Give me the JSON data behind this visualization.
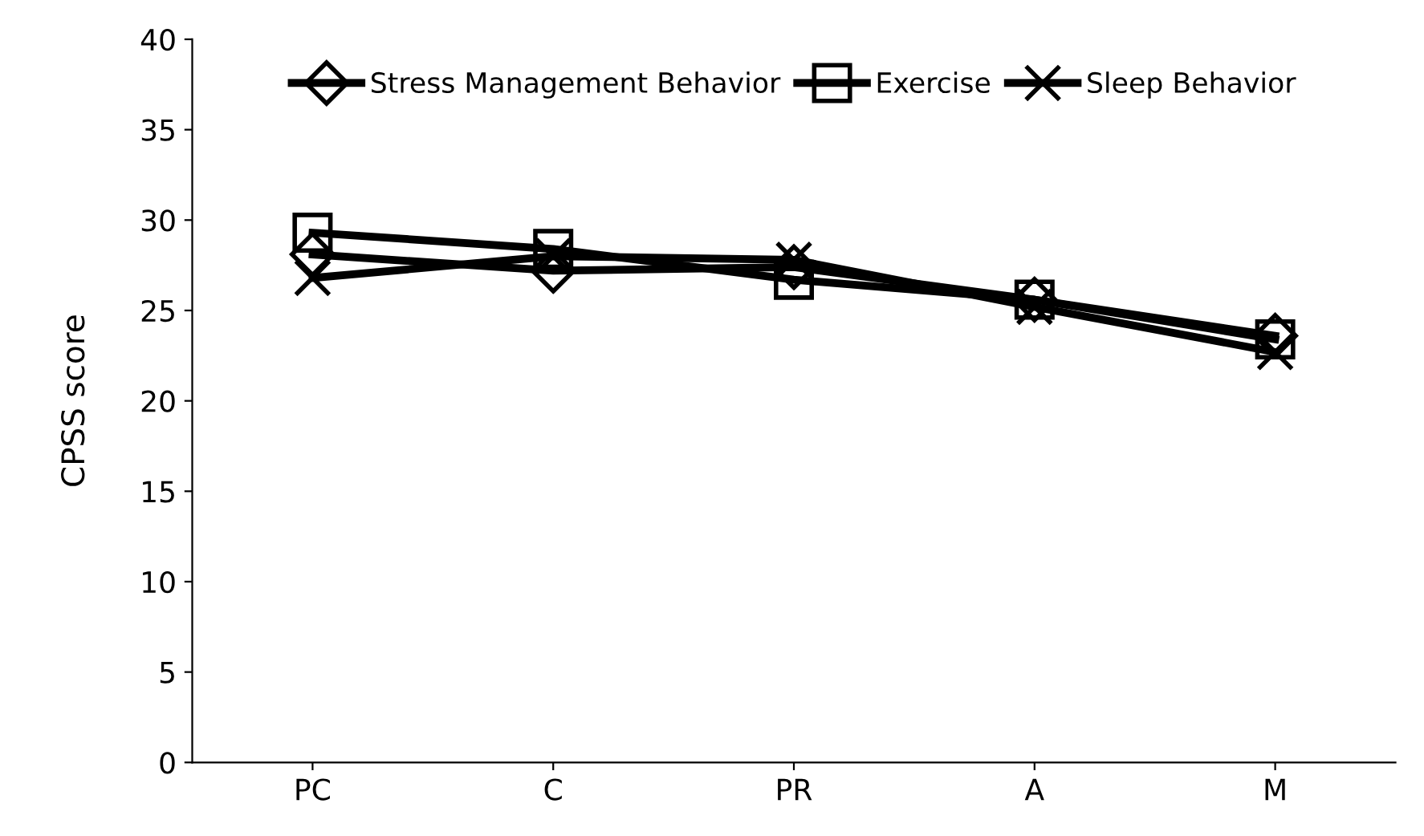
{
  "chart_data": {
    "type": "line",
    "ylabel": "CPSS score",
    "categories": [
      "PC",
      "C",
      "PR",
      "A",
      "M"
    ],
    "series": [
      {
        "name": "Stress Management Behavior",
        "color": "#000000",
        "marker": "diamond",
        "values": [
          28.1,
          27.2,
          27.4,
          25.6,
          23.6
        ]
      },
      {
        "name": "Exercise",
        "color": "#000000",
        "marker": "square",
        "values": [
          29.3,
          28.4,
          26.7,
          25.6,
          23.4
        ]
      },
      {
        "name": "Sleep Behavior",
        "color": "#000000",
        "marker": "cross",
        "values": [
          26.8,
          28.0,
          27.8,
          25.2,
          22.7
        ]
      }
    ],
    "ylim": [
      0,
      40
    ],
    "yticks": [
      0,
      5,
      10,
      15,
      20,
      25,
      30,
      35,
      40
    ],
    "grid": false,
    "legend": "top"
  }
}
